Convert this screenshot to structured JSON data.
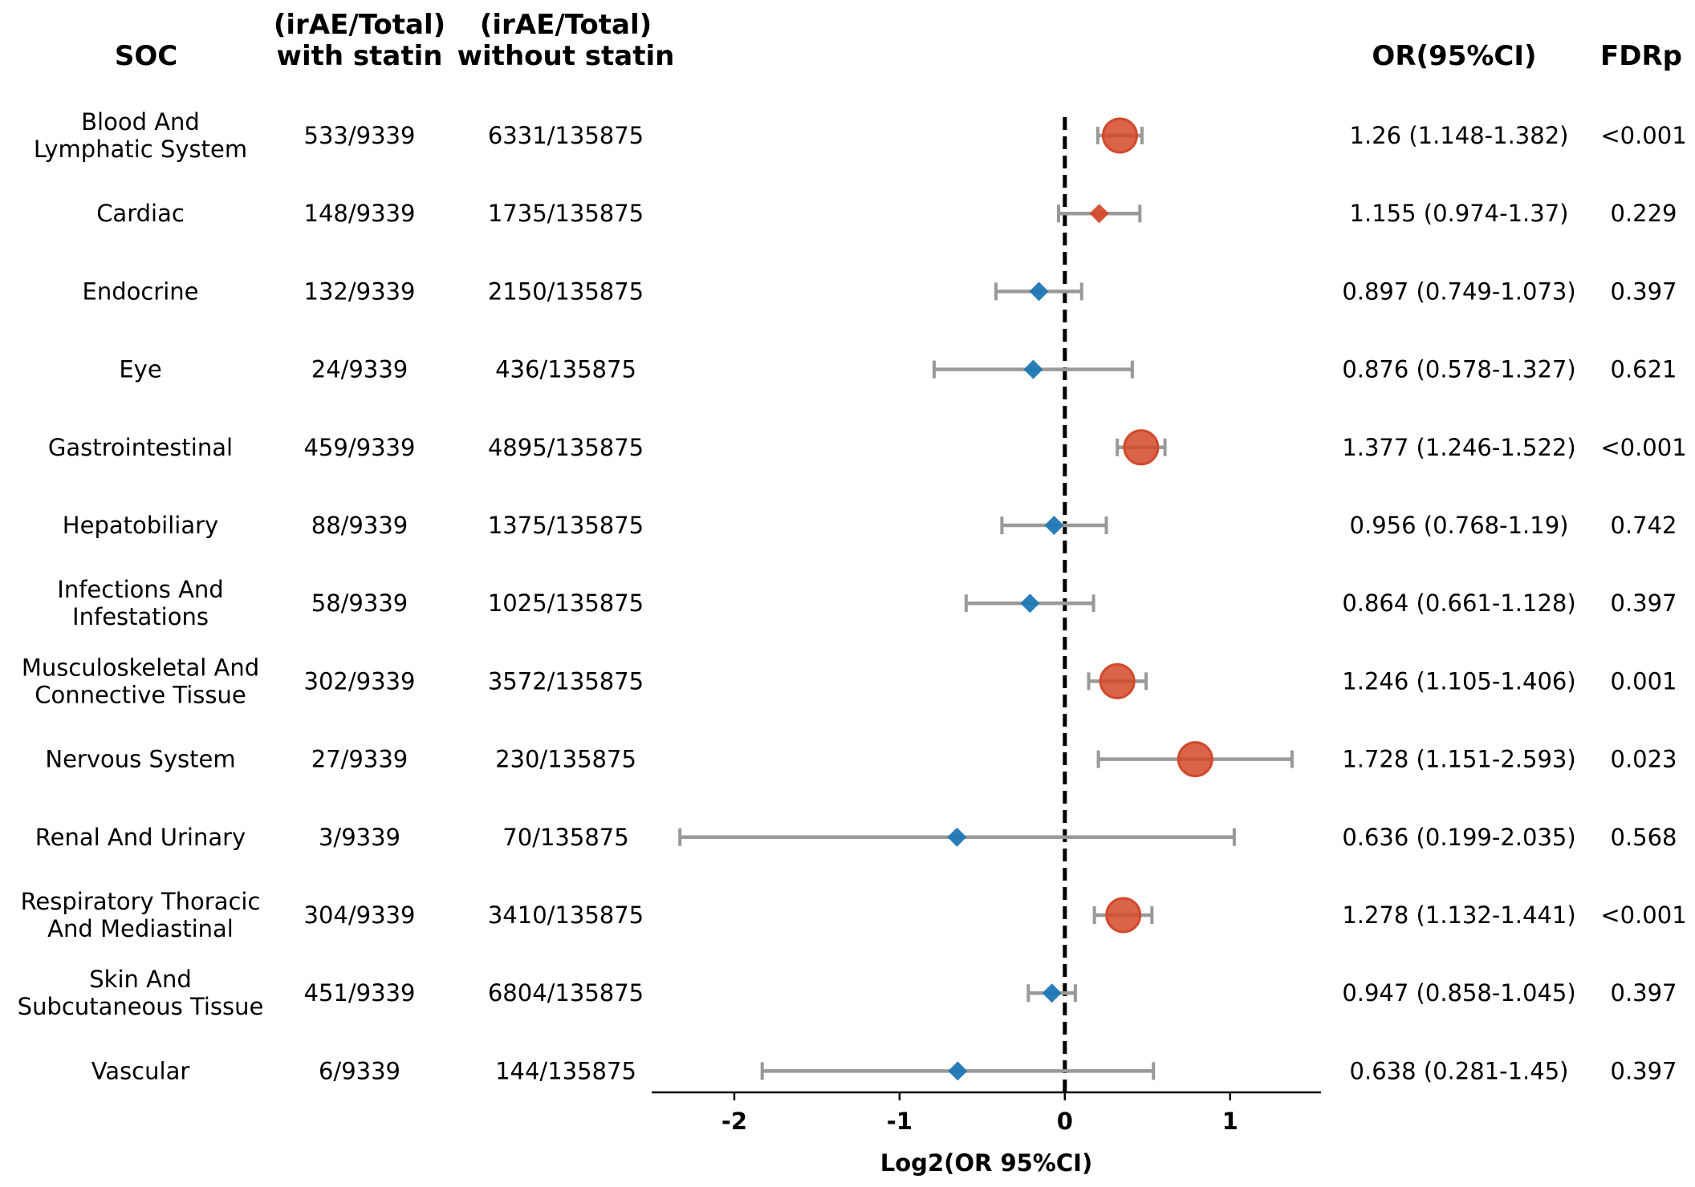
{
  "headers": {
    "soc": "SOC",
    "with_line1": "(irAE/Total)",
    "with_line2": "with statin",
    "without_line1": "(irAE/Total)",
    "without_line2": "without statin",
    "or": "OR(95%CI)",
    "fdr": "FDRp"
  },
  "colors": {
    "significant": "#d2492a",
    "nonsignificant": "#1f77b4",
    "ci_line": "#999999",
    "reference_line": "#000000"
  },
  "chart_data": {
    "type": "forest",
    "xlabel": "Log2(OR 95%CI)",
    "xlim": [
      -2.5,
      1.55
    ],
    "xticks": [
      -2,
      -1,
      0,
      1
    ],
    "reference_line": 0,
    "rows": [
      {
        "soc": [
          "Blood And",
          "Lymphatic System"
        ],
        "with_statin": "533/9339",
        "without_statin": "6331/135875",
        "or_text": "1.26 (1.148-1.382)",
        "fdr": "<0.001",
        "or": 1.26,
        "lo": 1.148,
        "hi": 1.382,
        "significant": true
      },
      {
        "soc": [
          "Cardiac"
        ],
        "with_statin": "148/9339",
        "without_statin": "1735/135875",
        "or_text": "1.155 (0.974-1.37)",
        "fdr": "0.229",
        "or": 1.155,
        "lo": 0.974,
        "hi": 1.37,
        "significant": false
      },
      {
        "soc": [
          "Endocrine"
        ],
        "with_statin": "132/9339",
        "without_statin": "2150/135875",
        "or_text": "0.897 (0.749-1.073)",
        "fdr": "0.397",
        "or": 0.897,
        "lo": 0.749,
        "hi": 1.073,
        "significant": false
      },
      {
        "soc": [
          "Eye"
        ],
        "with_statin": "24/9339",
        "without_statin": "436/135875",
        "or_text": "0.876 (0.578-1.327)",
        "fdr": "0.621",
        "or": 0.876,
        "lo": 0.578,
        "hi": 1.327,
        "significant": false
      },
      {
        "soc": [
          "Gastrointestinal"
        ],
        "with_statin": "459/9339",
        "without_statin": "4895/135875",
        "or_text": "1.377 (1.246-1.522)",
        "fdr": "<0.001",
        "or": 1.377,
        "lo": 1.246,
        "hi": 1.522,
        "significant": true
      },
      {
        "soc": [
          "Hepatobiliary"
        ],
        "with_statin": "88/9339",
        "without_statin": "1375/135875",
        "or_text": "0.956 (0.768-1.19)",
        "fdr": "0.742",
        "or": 0.956,
        "lo": 0.768,
        "hi": 1.19,
        "significant": false
      },
      {
        "soc": [
          "Infections And",
          "Infestations"
        ],
        "with_statin": "58/9339",
        "without_statin": "1025/135875",
        "or_text": "0.864 (0.661-1.128)",
        "fdr": "0.397",
        "or": 0.864,
        "lo": 0.661,
        "hi": 1.128,
        "significant": false
      },
      {
        "soc": [
          "Musculoskeletal And",
          "Connective Tissue"
        ],
        "with_statin": "302/9339",
        "without_statin": "3572/135875",
        "or_text": "1.246 (1.105-1.406)",
        "fdr": "0.001",
        "or": 1.246,
        "lo": 1.105,
        "hi": 1.406,
        "significant": true
      },
      {
        "soc": [
          "Nervous System"
        ],
        "with_statin": "27/9339",
        "without_statin": "230/135875",
        "or_text": "1.728 (1.151-2.593)",
        "fdr": "0.023",
        "or": 1.728,
        "lo": 1.151,
        "hi": 2.593,
        "significant": true
      },
      {
        "soc": [
          "Renal And Urinary"
        ],
        "with_statin": "3/9339",
        "without_statin": "70/135875",
        "or_text": "0.636 (0.199-2.035)",
        "fdr": "0.568",
        "or": 0.636,
        "lo": 0.199,
        "hi": 2.035,
        "significant": false
      },
      {
        "soc": [
          "Respiratory Thoracic",
          "And Mediastinal"
        ],
        "with_statin": "304/9339",
        "without_statin": "3410/135875",
        "or_text": "1.278 (1.132-1.441)",
        "fdr": "<0.001",
        "or": 1.278,
        "lo": 1.132,
        "hi": 1.441,
        "significant": true
      },
      {
        "soc": [
          "Skin And",
          "Subcutaneous Tissue"
        ],
        "with_statin": "451/9339",
        "without_statin": "6804/135875",
        "or_text": "0.947 (0.858-1.045)",
        "fdr": "0.397",
        "or": 0.947,
        "lo": 0.858,
        "hi": 1.045,
        "significant": false
      },
      {
        "soc": [
          "Vascular"
        ],
        "with_statin": "6/9339",
        "without_statin": "144/135875",
        "or_text": "0.638 (0.281-1.45)",
        "fdr": "0.397",
        "or": 0.638,
        "lo": 0.281,
        "hi": 1.45,
        "significant": false
      }
    ]
  }
}
